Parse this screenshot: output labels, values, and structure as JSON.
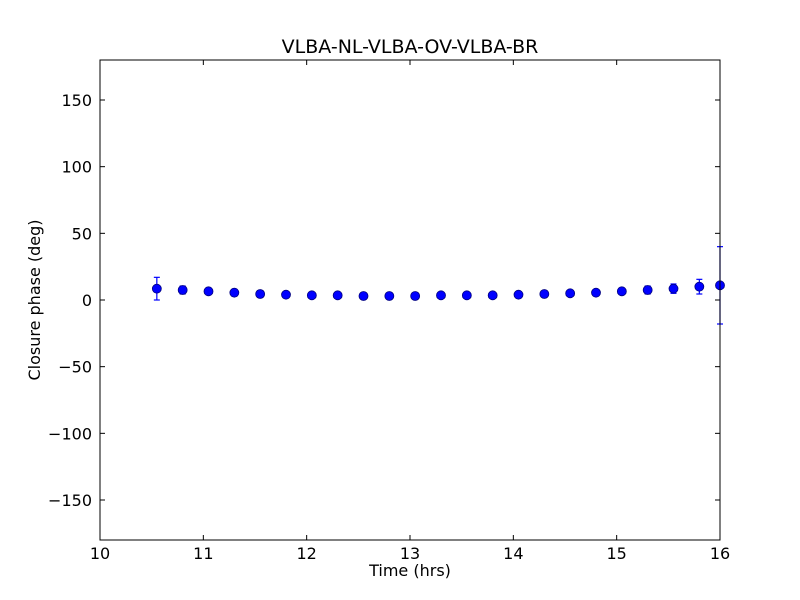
{
  "chart_data": {
    "type": "scatter",
    "title": "VLBA-NL-VLBA-OV-VLBA-BR",
    "xlabel": "Time (hrs)",
    "ylabel": "Closure phase (deg)",
    "xlim": [
      10,
      16
    ],
    "ylim": [
      -180,
      180
    ],
    "x_ticks": [
      10,
      11,
      12,
      13,
      14,
      15,
      16
    ],
    "y_ticks": [
      150,
      100,
      50,
      0,
      -50,
      -100,
      -150
    ],
    "y_tick_labels": [
      "150",
      "100",
      "50",
      "0",
      "−50",
      "−100",
      "−150"
    ],
    "grid": false,
    "marker_color": "#0000ff",
    "errorbar_color": "#0000ff",
    "points": [
      {
        "x": 10.55,
        "y": 8.5,
        "err": 8.5
      },
      {
        "x": 10.8,
        "y": 7.5,
        "err": 3.0
      },
      {
        "x": 11.05,
        "y": 6.5,
        "err": 2.5
      },
      {
        "x": 11.3,
        "y": 5.5,
        "err": 2.5
      },
      {
        "x": 11.55,
        "y": 4.5,
        "err": 2.5
      },
      {
        "x": 11.8,
        "y": 4.0,
        "err": 2.0
      },
      {
        "x": 12.05,
        "y": 3.5,
        "err": 2.0
      },
      {
        "x": 12.3,
        "y": 3.5,
        "err": 2.0
      },
      {
        "x": 12.55,
        "y": 3.0,
        "err": 2.0
      },
      {
        "x": 12.8,
        "y": 3.0,
        "err": 2.0
      },
      {
        "x": 13.05,
        "y": 3.0,
        "err": 2.0
      },
      {
        "x": 13.3,
        "y": 3.5,
        "err": 2.0
      },
      {
        "x": 13.55,
        "y": 3.5,
        "err": 2.0
      },
      {
        "x": 13.8,
        "y": 3.5,
        "err": 2.0
      },
      {
        "x": 14.05,
        "y": 4.0,
        "err": 2.0
      },
      {
        "x": 14.3,
        "y": 4.5,
        "err": 2.0
      },
      {
        "x": 14.55,
        "y": 5.0,
        "err": 2.0
      },
      {
        "x": 14.8,
        "y": 5.5,
        "err": 2.0
      },
      {
        "x": 15.05,
        "y": 6.5,
        "err": 2.5
      },
      {
        "x": 15.3,
        "y": 7.5,
        "err": 3.0
      },
      {
        "x": 15.55,
        "y": 8.5,
        "err": 3.5
      },
      {
        "x": 15.8,
        "y": 10.0,
        "err": 5.5
      },
      {
        "x": 16.0,
        "y": 11.0,
        "err": 29.0
      }
    ]
  }
}
